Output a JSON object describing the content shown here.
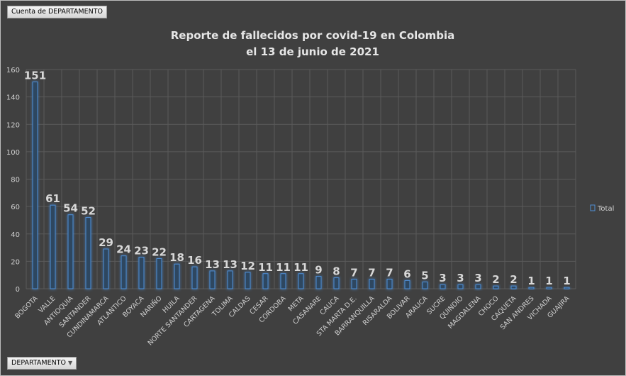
{
  "field_button": "Cuenta de DEPARTAMENTO",
  "axis_button": "DEPARTAMENTO",
  "chart_data": {
    "type": "bar",
    "title": [
      "Reporte de fallecidos por covid-19 en Colombia",
      "el 13 de junio de 2021"
    ],
    "categories": [
      "BOGOTA",
      "VALLE",
      "ANTIOQUIA",
      "SANTANDER",
      "CUNDINAMARCA",
      "ATLANTICO",
      "BOYACA",
      "NARIÑO",
      "HUILA",
      "NORTE SANTANDER",
      "CARTAGENA",
      "TOLIMA",
      "CALDAS",
      "CESAR",
      "CORDOBA",
      "META",
      "CASANARE",
      "CAUCA",
      "STA MARTA D.E.",
      "BARRANQUILLA",
      "RISARALDA",
      "BOLIVAR",
      "ARAUCA",
      "SUCRE",
      "QUINDIO",
      "MAGDALENA",
      "CHOCO",
      "CAQUETA",
      "SAN ANDRES",
      "VICHADA",
      "GUAJIRA"
    ],
    "series": [
      {
        "name": "Total",
        "values": [
          151,
          61,
          54,
          52,
          29,
          24,
          23,
          22,
          18,
          16,
          13,
          13,
          12,
          11,
          11,
          11,
          9,
          8,
          7,
          7,
          7,
          6,
          5,
          3,
          3,
          3,
          2,
          2,
          1,
          1,
          1
        ]
      }
    ],
    "yticks": [
      0,
      20,
      40,
      60,
      80,
      100,
      120,
      140,
      160
    ],
    "ylim": [
      0,
      160
    ],
    "grid": true,
    "legend": "right",
    "colors": {
      "background": "#404040",
      "bar_stroke": "#4f8fd6",
      "grid": "#5a5a5a"
    }
  }
}
